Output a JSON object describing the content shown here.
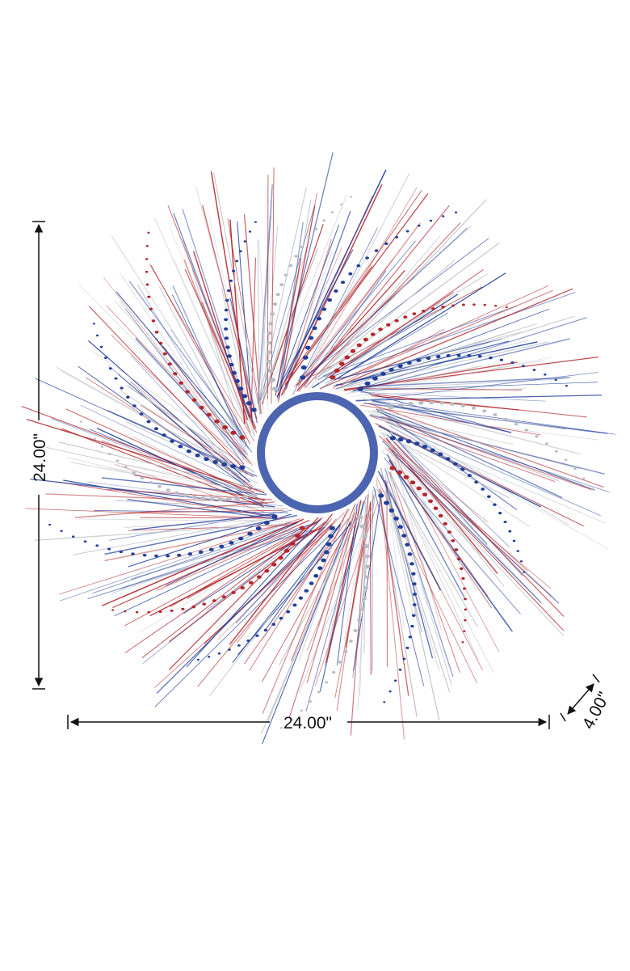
{
  "product": {
    "name": "",
    "colors": {
      "red": "#b5262c",
      "blue": "#1f3f9c",
      "silver": "#b8bcc4",
      "dimension_line": "#111111"
    }
  },
  "dimensions": {
    "height_label": "24.00\"",
    "width_label": "24.00\"",
    "depth_label": "4.00\""
  }
}
